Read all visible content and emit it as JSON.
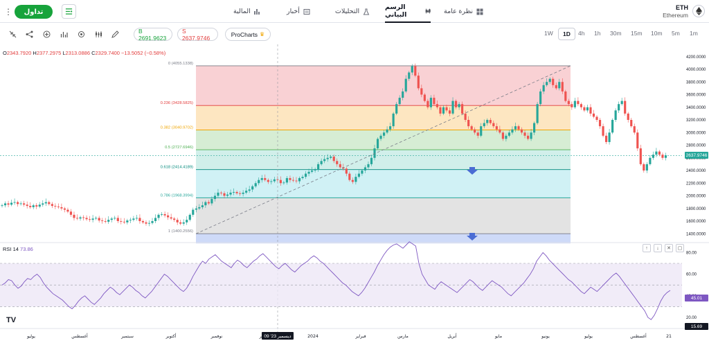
{
  "topnav": {
    "menu_icon": "more-vertical-icon",
    "trade_label": "تداول",
    "tabs": [
      {
        "label": "المالية",
        "icon": "bar-chart-icon"
      },
      {
        "label": "أخبار",
        "icon": "news-icon"
      },
      {
        "label": "التحليلات",
        "icon": "flask-icon"
      },
      {
        "label": "الرسم البياني",
        "icon": "candles-icon",
        "active": true
      },
      {
        "label": "نظرة عامة",
        "icon": "grid-icon"
      }
    ],
    "asset_symbol": "ETH",
    "asset_name": "Ethereum"
  },
  "toolbar": {
    "buy_label": "B 2691.9623",
    "sell_label": "S 2637.9746",
    "pro_label": "ProCharts",
    "timeframes": [
      "1W",
      "1D",
      "4h",
      "1h",
      "30m",
      "15m",
      "10m",
      "5m",
      "1m"
    ],
    "active_timeframe": "1D"
  },
  "ohlc": {
    "o_label": "O",
    "o": "2343.7920",
    "h_label": "H",
    "h": "2377.2975",
    "l_label": "L",
    "l": "2313.0886",
    "c_label": "C",
    "c": "2329.7400",
    "change": "−13.5052 (−0.58%)"
  },
  "fib_levels": [
    {
      "label": "0 (4055.1338)",
      "value": 4055.1338,
      "color": "#787b86"
    },
    {
      "label": "0.236 (3428.5825)",
      "value": 3428.5825,
      "color": "#e23b3b"
    },
    {
      "label": "0.382 (3040.9702)",
      "value": 3040.9702,
      "color": "#f0a500"
    },
    {
      "label": "0.5 (2727.6946)",
      "value": 2727.6946,
      "color": "#4caf50"
    },
    {
      "label": "0.618 (2414.4189)",
      "value": 2414.4189,
      "color": "#00897b"
    },
    {
      "label": "0.786 (1968.3994)",
      "value": 1968.3994,
      "color": "#26a69a"
    },
    {
      "label": "1 (1400.2556)",
      "value": 1400.2556,
      "color": "#787b86"
    }
  ],
  "price_axis": [
    "4200.0000",
    "4000.0000",
    "3800.0000",
    "3600.0000",
    "3400.0000",
    "3200.0000",
    "3000.0000",
    "2800.0000",
    "2600.0000",
    "2400.0000",
    "2200.0000",
    "2000.0000",
    "1800.0000",
    "1600.0000",
    "1400.0000"
  ],
  "price_axis_values": [
    4200,
    4000,
    3800,
    3600,
    3400,
    3200,
    3000,
    2800,
    2600,
    2400,
    2200,
    2000,
    1800,
    1600,
    1400
  ],
  "current_price": "2637.9746",
  "rsi": {
    "label": "RSI",
    "period": "14",
    "value": "73.86",
    "axis": [
      "80.00",
      "60.00",
      "40.00",
      "20.00"
    ],
    "axis_values": [
      80,
      60,
      40,
      20
    ],
    "current_tag": "45.01",
    "low_tag": "15.69"
  },
  "time_axis": [
    "يوليو",
    "أغسطس",
    "سبتمبر",
    "أكتوبر",
    "نوفمبر",
    "ديسمبر",
    "2024",
    "فبراير",
    "مارس",
    "أبريل",
    "مايو",
    "يونيو",
    "يوليو",
    "أغسطس",
    "21"
  ],
  "cursor_date": "09 '23 ديسمبر",
  "colors": {
    "up": "#26a69a",
    "down": "#ef5350",
    "rsi": "#7e57c2",
    "trade": "#17a33b"
  },
  "chart_data": {
    "type": "candlestick",
    "series": [
      {
        "name": "ETH",
        "values": [
          1850,
          1880,
          1860,
          1890,
          1900,
          1870,
          1880,
          1860,
          1840,
          1820,
          1850,
          1830,
          1860,
          1880,
          1900,
          1870,
          1840,
          1830,
          1820,
          1800,
          1780,
          1750,
          1700,
          1650,
          1640,
          1660,
          1650,
          1630,
          1620,
          1640,
          1650,
          1610,
          1600,
          1590,
          1620,
          1640,
          1650,
          1600,
          1590,
          1580,
          1610,
          1620,
          1640,
          1650,
          1600,
          1580,
          1560,
          1570,
          1600,
          1650,
          1700,
          1710,
          1690,
          1660,
          1640,
          1620,
          1580,
          1560,
          1580,
          1620,
          1700,
          1780,
          1800,
          1820,
          1850,
          1900,
          1880,
          1950,
          2000,
          2050,
          2040,
          2000,
          2020,
          2050,
          2060,
          2040,
          2030,
          2050,
          2080,
          2100,
          2150,
          2200,
          2250,
          2280,
          2250,
          2220,
          2230,
          2260,
          2250,
          2200,
          2210,
          2280,
          2250,
          2240,
          2230,
          2280,
          2300,
          2350,
          2380,
          2400,
          2420,
          2500,
          2550,
          2580,
          2600,
          2620,
          2550,
          2500,
          2450,
          2430,
          2350,
          2250,
          2220,
          2300,
          2350,
          2400,
          2450,
          2500,
          2600,
          2750,
          2900,
          2950,
          3000,
          3050,
          3100,
          3300,
          3450,
          3550,
          3650,
          3850,
          3950,
          4050,
          3900,
          3700,
          3600,
          3500,
          3400,
          3550,
          3450,
          3400,
          3300,
          3400,
          3350,
          3300,
          3500,
          3400,
          3450,
          3300,
          3200,
          3100,
          3050,
          3000,
          2950,
          3100,
          3150,
          3200,
          3150,
          3100,
          3050,
          3000,
          2900,
          2950,
          3000,
          3050,
          3100,
          3050,
          3000,
          2950,
          2900,
          3000,
          3150,
          3450,
          3650,
          3750,
          3800,
          3850,
          3750,
          3700,
          3800,
          3650,
          3500,
          3450,
          3400,
          3500,
          3450,
          3400,
          3350,
          3400,
          3300,
          3250,
          3200,
          3100,
          2950,
          2850,
          3000,
          3200,
          3350,
          3450,
          3500,
          3300,
          3200,
          3100,
          3000,
          2750,
          2500,
          2400,
          2500,
          2600,
          2650,
          2700,
          2650,
          2600,
          2640
        ]
      }
    ],
    "rsi_values": [
      50,
      52,
      55,
      54,
      50,
      47,
      49,
      53,
      56,
      55,
      58,
      60,
      57,
      52,
      48,
      45,
      42,
      40,
      38,
      36,
      33,
      30,
      28,
      31,
      35,
      38,
      40,
      37,
      34,
      32,
      35,
      38,
      42,
      45,
      48,
      46,
      43,
      41,
      44,
      47,
      50,
      48,
      45,
      43,
      40,
      38,
      41,
      44,
      48,
      52,
      56,
      60,
      58,
      55,
      52,
      49,
      46,
      44,
      47,
      52,
      58,
      63,
      68,
      72,
      70,
      74,
      76,
      78,
      75,
      72,
      70,
      68,
      66,
      70,
      73,
      71,
      68,
      66,
      69,
      72,
      74,
      77,
      79,
      76,
      73,
      70,
      67,
      65,
      68,
      70,
      67,
      64,
      62,
      65,
      68,
      70,
      72,
      75,
      77,
      75,
      72,
      70,
      67,
      64,
      61,
      58,
      55,
      52,
      50,
      47,
      44,
      42,
      40,
      43,
      47,
      52,
      57,
      62,
      68,
      73,
      78,
      82,
      85,
      87,
      88,
      86,
      84,
      87,
      90,
      88,
      86,
      70,
      60,
      55,
      50,
      48,
      46,
      50,
      53,
      51,
      49,
      47,
      45,
      43,
      46,
      49,
      52,
      55,
      53,
      50,
      47,
      45,
      48,
      51,
      54,
      52,
      50,
      48,
      45,
      42,
      40,
      43,
      46,
      49,
      52,
      56,
      60,
      65,
      72,
      76,
      80,
      77,
      73,
      70,
      67,
      64,
      61,
      58,
      55,
      53,
      50,
      47,
      44,
      42,
      45,
      48,
      46,
      44,
      47,
      50,
      53,
      56,
      59,
      61,
      58,
      54,
      50,
      46,
      42,
      38,
      34,
      30,
      26,
      20,
      18,
      22,
      28,
      35,
      40,
      43,
      45
    ]
  }
}
